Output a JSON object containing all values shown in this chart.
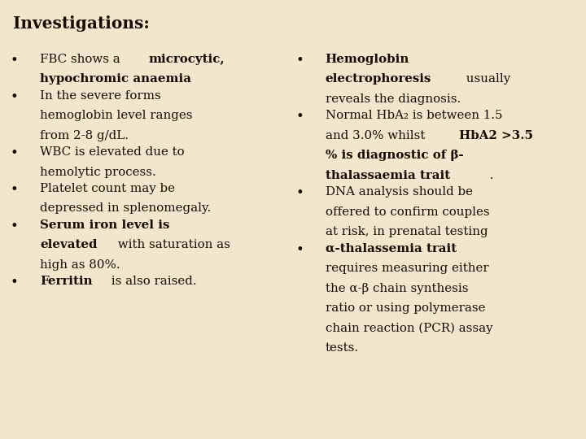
{
  "title": "Investigations:",
  "background_color": "#f2e6cc",
  "text_color": "#1a0a00",
  "figsize": [
    7.2,
    5.4
  ],
  "dpi": 100,
  "left_bullets": [
    [
      {
        "text": "FBC shows a ",
        "bold": false
      },
      {
        "text": "microcytic,",
        "bold": true
      },
      {
        "newline": true
      },
      {
        "text": "hypochromic anaemia",
        "bold": true
      }
    ],
    [
      {
        "text": "In the severe forms",
        "bold": false
      },
      {
        "newline": true
      },
      {
        "text": "hemoglobin level ranges",
        "bold": false
      },
      {
        "newline": true
      },
      {
        "text": "from 2-8 g/dL.",
        "bold": false
      }
    ],
    [
      {
        "text": "WBC is elevated due to",
        "bold": false
      },
      {
        "newline": true
      },
      {
        "text": "hemolytic process.",
        "bold": false
      }
    ],
    [
      {
        "text": "Platelet count may be",
        "bold": false
      },
      {
        "newline": true
      },
      {
        "text": "depressed in splenomegaly.",
        "bold": false
      }
    ],
    [
      {
        "text": "Serum iron level is",
        "bold": true
      },
      {
        "newline": true
      },
      {
        "text": "elevated",
        "bold": true
      },
      {
        "text": " with saturation as",
        "bold": false
      },
      {
        "newline": true
      },
      {
        "text": "high as 80%.",
        "bold": false
      }
    ],
    [
      {
        "text": "Ferritin",
        "bold": true
      },
      {
        "text": " is also raised.",
        "bold": false
      }
    ]
  ],
  "right_bullets": [
    [
      {
        "text": "Hemoglobin",
        "bold": true
      },
      {
        "newline": true
      },
      {
        "text": "electrophoresis",
        "bold": true
      },
      {
        "text": " usually",
        "bold": false
      },
      {
        "newline": true
      },
      {
        "text": "reveals the diagnosis.",
        "bold": false
      }
    ],
    [
      {
        "text": "Normal HbA₂ is between 1.5",
        "bold": false
      },
      {
        "newline": true
      },
      {
        "text": "and 3.0% whilst ",
        "bold": false
      },
      {
        "text": "HbA2 >3.5",
        "bold": true
      },
      {
        "newline": true
      },
      {
        "text": "% is diagnostic of β-",
        "bold": true
      },
      {
        "newline": true
      },
      {
        "text": "thalassaemia trait",
        "bold": true
      },
      {
        "text": " .",
        "bold": false
      }
    ],
    [
      {
        "text": "DNA analysis should be",
        "bold": false
      },
      {
        "newline": true
      },
      {
        "text": "offered to confirm couples",
        "bold": false
      },
      {
        "newline": true
      },
      {
        "text": "at risk, in prenatal testing",
        "bold": false
      }
    ],
    [
      {
        "text": "α-thalassemia trait",
        "bold": true
      },
      {
        "newline": true
      },
      {
        "text": "requires measuring either",
        "bold": false
      },
      {
        "newline": true
      },
      {
        "text": "the α-β chain synthesis",
        "bold": false
      },
      {
        "newline": true
      },
      {
        "text": "ratio or using polymerase",
        "bold": false
      },
      {
        "newline": true
      },
      {
        "text": "chain reaction (PCR) assay",
        "bold": false
      },
      {
        "newline": true
      },
      {
        "text": "tests.",
        "bold": false
      }
    ]
  ]
}
